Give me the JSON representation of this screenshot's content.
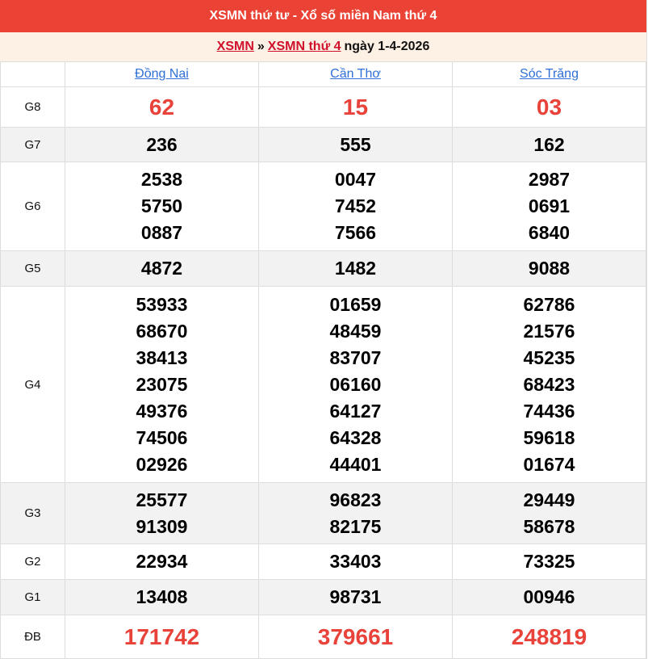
{
  "header": {
    "title": "XSMN thứ tư - Xổ số miền Nam thứ 4"
  },
  "breadcrumb": {
    "link1": "XSMN",
    "sep": "»",
    "link2": "XSMN thứ 4",
    "date": "ngày 1-4-2026"
  },
  "colors": {
    "header_bg": "#ea4335",
    "highlight": "#e8423a",
    "link": "#2f6fd6"
  },
  "provinces": [
    "Đồng Nai",
    "Cần Thơ",
    "Sóc Trăng"
  ],
  "prizes": [
    {
      "label": "G8",
      "values": [
        [
          "62"
        ],
        [
          "15"
        ],
        [
          "03"
        ]
      ]
    },
    {
      "label": "G7",
      "values": [
        [
          "236"
        ],
        [
          "555"
        ],
        [
          "162"
        ]
      ]
    },
    {
      "label": "G6",
      "values": [
        [
          "2538",
          "5750",
          "0887"
        ],
        [
          "0047",
          "7452",
          "7566"
        ],
        [
          "2987",
          "0691",
          "6840"
        ]
      ]
    },
    {
      "label": "G5",
      "values": [
        [
          "4872"
        ],
        [
          "1482"
        ],
        [
          "9088"
        ]
      ]
    },
    {
      "label": "G4",
      "values": [
        [
          "53933",
          "68670",
          "38413",
          "23075",
          "49376",
          "74506",
          "02926"
        ],
        [
          "01659",
          "48459",
          "83707",
          "06160",
          "64127",
          "64328",
          "44401"
        ],
        [
          "62786",
          "21576",
          "45235",
          "68423",
          "74436",
          "59618",
          "01674"
        ]
      ]
    },
    {
      "label": "G3",
      "values": [
        [
          "25577",
          "91309"
        ],
        [
          "96823",
          "82175"
        ],
        [
          "29449",
          "58678"
        ]
      ]
    },
    {
      "label": "G2",
      "values": [
        [
          "22934"
        ],
        [
          "33403"
        ],
        [
          "73325"
        ]
      ]
    },
    {
      "label": "G1",
      "values": [
        [
          "13408"
        ],
        [
          "98731"
        ],
        [
          "00946"
        ]
      ]
    },
    {
      "label": "ĐB",
      "values": [
        [
          "171742"
        ],
        [
          "379661"
        ],
        [
          "248819"
        ]
      ]
    }
  ]
}
